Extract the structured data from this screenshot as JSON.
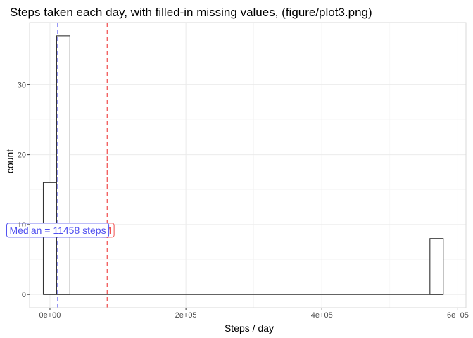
{
  "chart_data": {
    "type": "histogram",
    "title": "Steps taken each day, with filled-in missing values, (figure/plot3.png)",
    "xlabel": "Steps / day",
    "ylabel": "count",
    "xlim": [
      -30000,
      612000
    ],
    "ylim": [
      -1.9,
      38.9
    ],
    "x_ticks": [
      {
        "value": 0,
        "label": "0e+00"
      },
      {
        "value": 200000,
        "label": "2e+05"
      },
      {
        "value": 400000,
        "label": "4e+05"
      },
      {
        "value": 600000,
        "label": "6e+05"
      }
    ],
    "y_ticks": [
      {
        "value": 0,
        "label": "0"
      },
      {
        "value": 10,
        "label": "10"
      },
      {
        "value": 20,
        "label": "20"
      },
      {
        "value": 30,
        "label": "30"
      }
    ],
    "bin_width": 19600,
    "bins": [
      {
        "x0": -9800,
        "x1": 9800,
        "count": 16
      },
      {
        "x0": 9800,
        "x1": 29400,
        "count": 37
      },
      {
        "x0": 559000,
        "x1": 578600,
        "count": 8
      }
    ],
    "bars_fill": "#ffffff",
    "bars_outline": "#333333",
    "vlines": [
      {
        "name": "mean",
        "x": 84200,
        "color": "#f05050",
        "dash": "dashed"
      },
      {
        "name": "median",
        "x": 11458,
        "color": "#5050f0",
        "dash": "dashed"
      }
    ],
    "annotations": [
      {
        "name": "mean-label",
        "text": "M",
        "color": "#f05050",
        "x": 84200,
        "y": 9.2
      },
      {
        "name": "median-label",
        "text": "Median = 11458 steps",
        "color": "#5050f0",
        "x": 11458,
        "y": 9.2
      }
    ],
    "grid": true,
    "theme": "light"
  }
}
